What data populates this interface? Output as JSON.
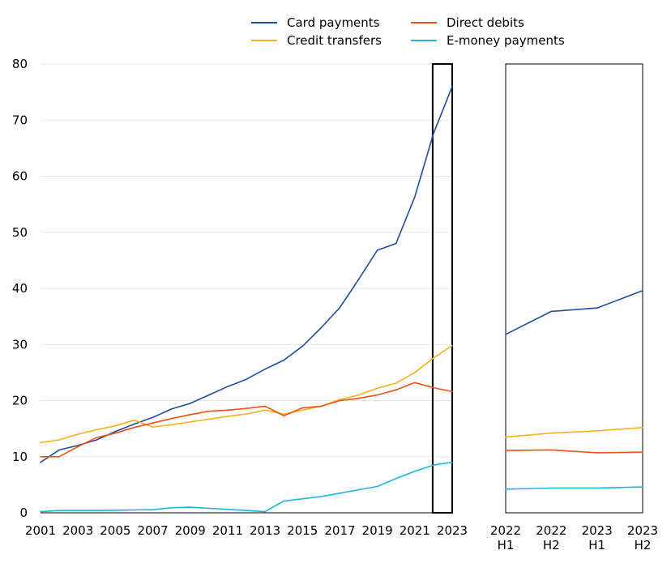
{
  "legend": {
    "card": "Card payments",
    "credit": "Credit transfers",
    "direct": "Direct debits",
    "emoney": "E-money payments"
  },
  "colors": {
    "card": "#1f4e9c",
    "credit": "#f5b21b",
    "direct": "#f0501a",
    "emoney": "#1fb3e0"
  },
  "chart_data": [
    {
      "type": "line",
      "x": [
        2001,
        2002,
        2003,
        2004,
        2005,
        2006,
        2007,
        2008,
        2009,
        2010,
        2011,
        2012,
        2013,
        2014,
        2015,
        2016,
        2017,
        2018,
        2019,
        2020,
        2021,
        2022,
        2023
      ],
      "x_tick_labels": [
        "2001",
        "2003",
        "2005",
        "2007",
        "2009",
        "2011",
        "2013",
        "2015",
        "2017",
        "2019",
        "2021",
        "2023"
      ],
      "ylim": [
        0,
        80
      ],
      "y_ticks": [
        "0",
        "10",
        "20",
        "30",
        "40",
        "50",
        "60",
        "70",
        "80"
      ],
      "highlight_range": [
        2022,
        2023
      ],
      "grid": "horizontal",
      "series": [
        {
          "name": "Card payments",
          "key": "card",
          "values": [
            9.0,
            11.2,
            12.0,
            13.0,
            14.5,
            15.8,
            17.0,
            18.5,
            19.5,
            21.0,
            22.5,
            23.8,
            25.6,
            27.2,
            29.7,
            33.0,
            36.6,
            41.6,
            46.8,
            48.0,
            56.3,
            67.6,
            76.0
          ]
        },
        {
          "name": "Credit transfers",
          "key": "credit",
          "values": [
            12.5,
            13.0,
            14.0,
            14.8,
            15.5,
            16.5,
            15.3,
            15.7,
            16.2,
            16.7,
            17.2,
            17.6,
            18.3,
            17.6,
            18.3,
            19.0,
            20.2,
            21.0,
            22.2,
            23.1,
            25.0,
            27.6,
            29.8
          ]
        },
        {
          "name": "Direct debits",
          "key": "direct",
          "values": [
            10.0,
            10.0,
            11.8,
            13.4,
            14.2,
            15.2,
            16.0,
            16.8,
            17.5,
            18.1,
            18.3,
            18.6,
            19.0,
            17.3,
            18.7,
            19.0,
            20.0,
            20.4,
            21.0,
            21.9,
            23.2,
            22.3,
            21.6
          ]
        },
        {
          "name": "E-money payments",
          "key": "emoney",
          "values": [
            0.2,
            0.4,
            0.4,
            0.4,
            0.45,
            0.5,
            0.55,
            0.9,
            1.0,
            0.8,
            0.6,
            0.4,
            0.2,
            2.1,
            2.5,
            2.9,
            3.5,
            4.1,
            4.7,
            6.1,
            7.4,
            8.5,
            9.0
          ]
        }
      ]
    },
    {
      "type": "line",
      "categories": [
        [
          "2022",
          "H1"
        ],
        [
          "2022",
          "H2"
        ],
        [
          "2023",
          "H1"
        ],
        [
          "2023",
          "H2"
        ]
      ],
      "ylim": [
        0,
        80
      ],
      "series": [
        {
          "name": "Card payments",
          "key": "card",
          "values": [
            31.8,
            35.9,
            36.5,
            39.6
          ]
        },
        {
          "name": "Credit transfers",
          "key": "credit",
          "values": [
            13.5,
            14.2,
            14.6,
            15.2
          ]
        },
        {
          "name": "Direct debits",
          "key": "direct",
          "values": [
            11.1,
            11.2,
            10.7,
            10.8
          ]
        },
        {
          "name": "E-money payments",
          "key": "emoney",
          "values": [
            4.2,
            4.4,
            4.4,
            4.6
          ]
        }
      ]
    }
  ]
}
